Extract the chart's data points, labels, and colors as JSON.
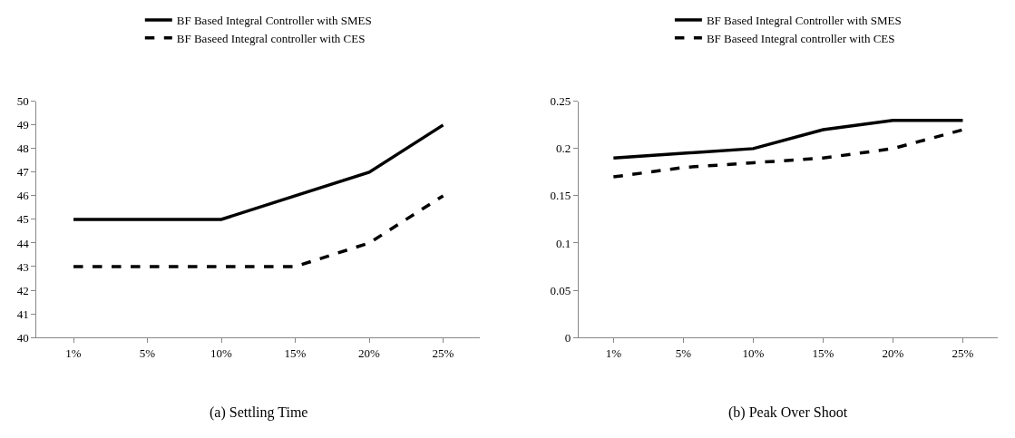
{
  "chart_data": [
    {
      "type": "line",
      "title": "(a) Settling Time",
      "categories": [
        "1%",
        "5%",
        "10%",
        "15%",
        "20%",
        "25%"
      ],
      "series": [
        {
          "name": "BF Based Integral Controller with SMES",
          "color": "#000000",
          "line_style": "solid",
          "values": [
            45,
            45,
            45,
            46,
            47,
            49
          ]
        },
        {
          "name": "BF Baseed Integral controller with CES",
          "color": "#000000",
          "line_style": "dashed",
          "values": [
            43,
            43,
            43,
            43,
            44,
            46
          ]
        }
      ],
      "ylim": [
        40,
        50
      ],
      "yticks": [
        40,
        41,
        42,
        43,
        44,
        45,
        46,
        47,
        48,
        49,
        50
      ],
      "grid": false,
      "legend": "top",
      "marker": "none"
    },
    {
      "type": "line",
      "title": "(b) Peak Over Shoot",
      "categories": [
        "1%",
        "5%",
        "10%",
        "15%",
        "20%",
        "25%"
      ],
      "series": [
        {
          "name": "BF Based Integral Controller with SMES",
          "color": "#000000",
          "line_style": "solid",
          "values": [
            0.19,
            0.195,
            0.2,
            0.22,
            0.23,
            0.23
          ]
        },
        {
          "name": "BF Baseed Integral controller with CES",
          "color": "#000000",
          "line_style": "dashed",
          "values": [
            0.17,
            0.18,
            0.185,
            0.19,
            0.2,
            0.22
          ]
        }
      ],
      "ylim": [
        0,
        0.25
      ],
      "yticks": [
        0,
        0.05,
        0.1,
        0.15,
        0.2,
        0.25
      ],
      "grid": false,
      "legend": "top",
      "marker": "none"
    }
  ]
}
